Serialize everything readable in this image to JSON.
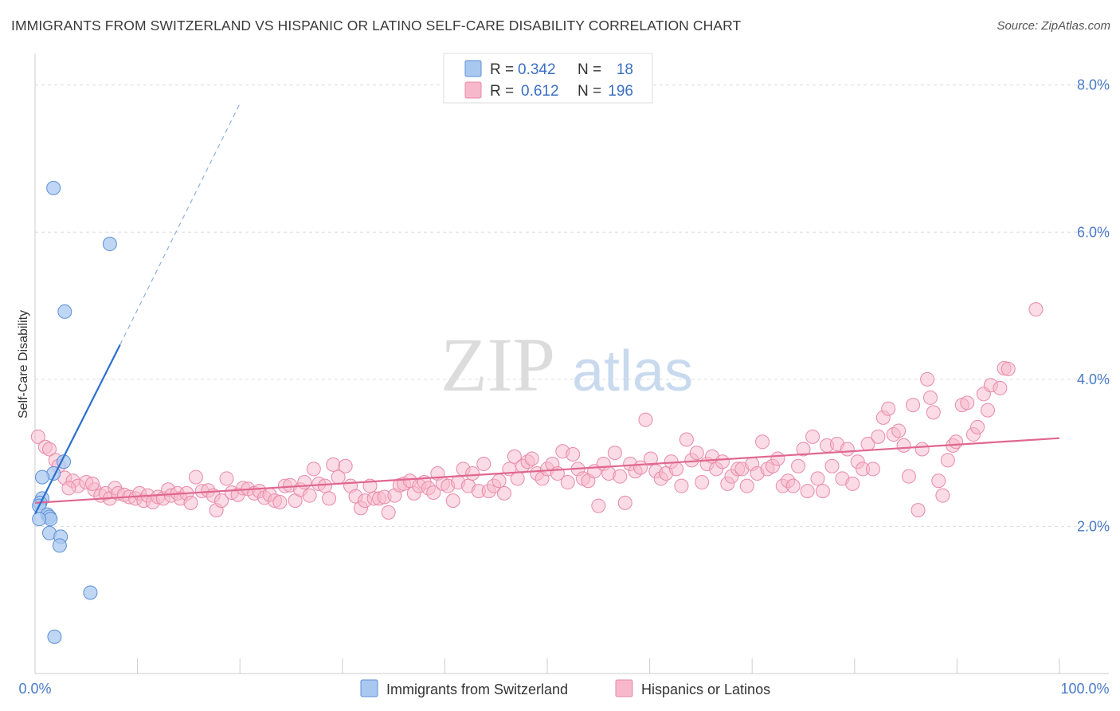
{
  "title": "IMMIGRANTS FROM SWITZERLAND VS HISPANIC OR LATINO SELF-CARE DISABILITY CORRELATION CHART",
  "source": "Source: ZipAtlas.com",
  "watermark": {
    "zip": "ZIP",
    "atlas": "atlas"
  },
  "legend": {
    "rows": [
      {
        "r_label": "R =",
        "r_value": "0.342",
        "n_label": "N =",
        "n_value": "18",
        "color": "#a9c8f0"
      },
      {
        "r_label": "R =",
        "r_value": "0.612",
        "n_label": "N =",
        "n_value": "196",
        "color": "#f7b8cc"
      }
    ]
  },
  "bottom_legend": [
    {
      "label": "Immigrants from Switzerland",
      "color": "#a9c8f0"
    },
    {
      "label": "Hispanics or Latinos",
      "color": "#f7b8cc"
    }
  ],
  "chart_data": {
    "type": "scatter",
    "title": "IMMIGRANTS FROM SWITZERLAND VS HISPANIC OR LATINO SELF-CARE DISABILITY CORRELATION CHART",
    "xlabel": "",
    "ylabel": "Self-Care Disability",
    "xlim": [
      0,
      100
    ],
    "ylim": [
      0,
      8.3
    ],
    "x_tick_labels": [
      "0.0%",
      "100.0%"
    ],
    "y_ticks": [
      2.0,
      4.0,
      6.0,
      8.0
    ],
    "y_tick_labels": [
      "2.0%",
      "4.0%",
      "6.0%",
      "8.0%"
    ],
    "grid": "horizontal dashed",
    "legend_position": "top-center",
    "series": [
      {
        "name": "Immigrants from Switzerland",
        "color": "#a9c8f0",
        "stroke": "#5b8fd6",
        "trend_color": "#2a6fd0",
        "trend": {
          "x0": 0.0,
          "y0": 2.17,
          "x1": 8.3,
          "y1": 4.47,
          "dash_to_x": 20.0,
          "dash_to_y": 7.75
        },
        "points": [
          [
            1.8,
            6.6
          ],
          [
            7.3,
            5.84
          ],
          [
            2.9,
            4.92
          ],
          [
            2.8,
            2.88
          ],
          [
            1.8,
            2.72
          ],
          [
            0.7,
            2.67
          ],
          [
            0.7,
            2.38
          ],
          [
            0.5,
            2.32
          ],
          [
            0.4,
            2.28
          ],
          [
            1.2,
            2.16
          ],
          [
            1.4,
            2.13
          ],
          [
            1.5,
            2.1
          ],
          [
            0.4,
            2.1
          ],
          [
            1.4,
            1.91
          ],
          [
            2.5,
            1.86
          ],
          [
            2.4,
            1.74
          ],
          [
            5.4,
            1.1
          ],
          [
            1.9,
            0.5
          ]
        ]
      },
      {
        "name": "Hispanics or Latinos",
        "color": "#f7b8cc",
        "stroke": "#e88aa8",
        "trend_color": "#e0678f",
        "trend": {
          "x0": 0.0,
          "y0": 2.32,
          "x1": 100.0,
          "y1": 3.2
        },
        "points": [
          [
            0.3,
            3.22
          ],
          [
            1.0,
            3.08
          ],
          [
            1.4,
            3.05
          ],
          [
            2.0,
            2.9
          ],
          [
            2.3,
            2.82
          ],
          [
            2.9,
            2.66
          ],
          [
            3.7,
            2.62
          ],
          [
            4.2,
            2.55
          ],
          [
            3.3,
            2.52
          ],
          [
            5.0,
            2.6
          ],
          [
            5.8,
            2.5
          ],
          [
            5.6,
            2.58
          ],
          [
            6.4,
            2.42
          ],
          [
            6.9,
            2.45
          ],
          [
            7.3,
            2.38
          ],
          [
            7.8,
            2.52
          ],
          [
            8.1,
            2.45
          ],
          [
            8.7,
            2.43
          ],
          [
            9.2,
            2.4
          ],
          [
            9.8,
            2.38
          ],
          [
            10.2,
            2.45
          ],
          [
            10.6,
            2.35
          ],
          [
            11.0,
            2.42
          ],
          [
            11.5,
            2.33
          ],
          [
            12.0,
            2.4
          ],
          [
            12.5,
            2.38
          ],
          [
            13.0,
            2.5
          ],
          [
            13.3,
            2.42
          ],
          [
            13.9,
            2.45
          ],
          [
            14.2,
            2.38
          ],
          [
            14.8,
            2.45
          ],
          [
            15.2,
            2.32
          ],
          [
            15.7,
            2.67
          ],
          [
            16.3,
            2.48
          ],
          [
            16.9,
            2.49
          ],
          [
            17.4,
            2.42
          ],
          [
            17.7,
            2.22
          ],
          [
            18.2,
            2.35
          ],
          [
            18.7,
            2.65
          ],
          [
            19.2,
            2.46
          ],
          [
            19.8,
            2.43
          ],
          [
            20.3,
            2.52
          ],
          [
            20.8,
            2.51
          ],
          [
            21.4,
            2.45
          ],
          [
            21.9,
            2.48
          ],
          [
            22.4,
            2.39
          ],
          [
            22.9,
            2.43
          ],
          [
            23.4,
            2.35
          ],
          [
            23.9,
            2.33
          ],
          [
            24.4,
            2.55
          ],
          [
            24.9,
            2.56
          ],
          [
            25.4,
            2.35
          ],
          [
            25.9,
            2.5
          ],
          [
            26.3,
            2.6
          ],
          [
            26.8,
            2.42
          ],
          [
            27.2,
            2.78
          ],
          [
            27.7,
            2.58
          ],
          [
            28.3,
            2.55
          ],
          [
            28.7,
            2.38
          ],
          [
            29.1,
            2.84
          ],
          [
            29.6,
            2.67
          ],
          [
            30.3,
            2.82
          ],
          [
            30.8,
            2.55
          ],
          [
            31.3,
            2.41
          ],
          [
            31.8,
            2.25
          ],
          [
            32.2,
            2.35
          ],
          [
            32.7,
            2.55
          ],
          [
            33.1,
            2.38
          ],
          [
            33.6,
            2.38
          ],
          [
            34.1,
            2.4
          ],
          [
            34.5,
            2.19
          ],
          [
            35.1,
            2.42
          ],
          [
            35.6,
            2.56
          ],
          [
            36.0,
            2.58
          ],
          [
            36.6,
            2.62
          ],
          [
            37.0,
            2.45
          ],
          [
            37.5,
            2.55
          ],
          [
            38.0,
            2.6
          ],
          [
            38.4,
            2.52
          ],
          [
            38.9,
            2.46
          ],
          [
            39.3,
            2.72
          ],
          [
            39.8,
            2.58
          ],
          [
            40.3,
            2.55
          ],
          [
            40.8,
            2.35
          ],
          [
            41.3,
            2.6
          ],
          [
            41.8,
            2.78
          ],
          [
            42.3,
            2.55
          ],
          [
            42.7,
            2.72
          ],
          [
            43.3,
            2.48
          ],
          [
            43.8,
            2.85
          ],
          [
            44.3,
            2.48
          ],
          [
            44.8,
            2.55
          ],
          [
            45.3,
            2.62
          ],
          [
            45.8,
            2.45
          ],
          [
            46.3,
            2.78
          ],
          [
            46.8,
            2.95
          ],
          [
            47.1,
            2.65
          ],
          [
            47.6,
            2.82
          ],
          [
            48.1,
            2.88
          ],
          [
            48.5,
            2.92
          ],
          [
            49.0,
            2.72
          ],
          [
            49.5,
            2.65
          ],
          [
            50.0,
            2.78
          ],
          [
            50.5,
            2.85
          ],
          [
            51.0,
            2.72
          ],
          [
            51.5,
            3.02
          ],
          [
            52.0,
            2.6
          ],
          [
            52.5,
            2.98
          ],
          [
            53.0,
            2.78
          ],
          [
            53.5,
            2.65
          ],
          [
            54.0,
            2.62
          ],
          [
            54.6,
            2.75
          ],
          [
            55.0,
            2.28
          ],
          [
            55.5,
            2.85
          ],
          [
            56.0,
            2.72
          ],
          [
            56.6,
            3.0
          ],
          [
            57.1,
            2.68
          ],
          [
            57.6,
            2.32
          ],
          [
            58.1,
            2.85
          ],
          [
            58.6,
            2.75
          ],
          [
            59.1,
            2.8
          ],
          [
            59.6,
            3.45
          ],
          [
            60.1,
            2.92
          ],
          [
            60.6,
            2.75
          ],
          [
            61.1,
            2.65
          ],
          [
            61.6,
            2.72
          ],
          [
            62.1,
            2.88
          ],
          [
            62.6,
            2.78
          ],
          [
            63.1,
            2.55
          ],
          [
            63.6,
            3.18
          ],
          [
            64.1,
            2.9
          ],
          [
            64.6,
            3.0
          ],
          [
            65.1,
            2.6
          ],
          [
            65.6,
            2.85
          ],
          [
            66.1,
            2.95
          ],
          [
            66.5,
            2.78
          ],
          [
            67.1,
            2.88
          ],
          [
            67.6,
            2.58
          ],
          [
            68.0,
            2.68
          ],
          [
            68.6,
            2.78
          ],
          [
            69.0,
            2.78
          ],
          [
            69.5,
            2.55
          ],
          [
            70.0,
            2.85
          ],
          [
            70.5,
            2.72
          ],
          [
            71.0,
            3.15
          ],
          [
            71.5,
            2.78
          ],
          [
            72.0,
            2.82
          ],
          [
            72.5,
            2.92
          ],
          [
            73.0,
            2.55
          ],
          [
            73.5,
            2.62
          ],
          [
            74.0,
            2.55
          ],
          [
            74.5,
            2.82
          ],
          [
            75.0,
            3.05
          ],
          [
            75.4,
            2.48
          ],
          [
            75.9,
            3.22
          ],
          [
            76.4,
            2.65
          ],
          [
            76.9,
            2.48
          ],
          [
            77.3,
            3.1
          ],
          [
            77.8,
            2.82
          ],
          [
            78.3,
            3.12
          ],
          [
            78.8,
            2.65
          ],
          [
            79.3,
            3.05
          ],
          [
            79.8,
            2.58
          ],
          [
            80.3,
            2.88
          ],
          [
            80.8,
            2.78
          ],
          [
            81.3,
            3.12
          ],
          [
            81.8,
            2.78
          ],
          [
            82.3,
            3.22
          ],
          [
            82.8,
            3.48
          ],
          [
            83.3,
            3.6
          ],
          [
            83.8,
            3.25
          ],
          [
            84.3,
            3.3
          ],
          [
            84.8,
            3.1
          ],
          [
            85.3,
            2.68
          ],
          [
            85.7,
            3.65
          ],
          [
            86.2,
            2.22
          ],
          [
            86.6,
            3.05
          ],
          [
            87.1,
            4.0
          ],
          [
            87.4,
            3.75
          ],
          [
            87.7,
            3.55
          ],
          [
            88.2,
            2.62
          ],
          [
            88.6,
            2.42
          ],
          [
            89.1,
            2.9
          ],
          [
            89.6,
            3.1
          ],
          [
            89.9,
            3.15
          ],
          [
            90.5,
            3.65
          ],
          [
            91.0,
            3.68
          ],
          [
            91.6,
            3.25
          ],
          [
            92.0,
            3.35
          ],
          [
            92.6,
            3.8
          ],
          [
            93.0,
            3.58
          ],
          [
            93.3,
            3.92
          ],
          [
            94.2,
            3.88
          ],
          [
            94.6,
            4.15
          ],
          [
            95.0,
            4.14
          ],
          [
            97.7,
            4.95
          ]
        ]
      }
    ]
  }
}
